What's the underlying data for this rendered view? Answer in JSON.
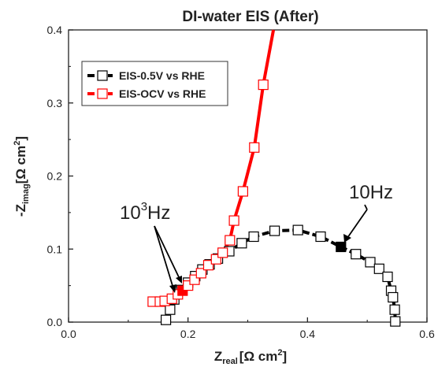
{
  "chart_data": {
    "type": "scatter",
    "title": "DI-water EIS (After)",
    "xlabel": {
      "main": "Z",
      "sub": "real",
      "unit": "[Ω  cm",
      "sup": "2",
      "close": "]"
    },
    "ylabel": {
      "main": "-Z",
      "sub": "imag",
      "unit": "[Ω cm",
      "sup": "2",
      "close": "]"
    },
    "xlim": [
      0.0,
      0.6
    ],
    "ylim": [
      0.0,
      0.4
    ],
    "xticks": [
      "0.0",
      "0.2",
      "0.4",
      "0.6"
    ],
    "yticks": [
      "0.0",
      "0.1",
      "0.2",
      "0.3",
      "0.4"
    ],
    "grid": false,
    "legend_position": "top-left",
    "series": [
      {
        "name": "EIS-0.5V vs RHE",
        "color": "#000000",
        "points": [
          [
            0.163,
            0.003
          ],
          [
            0.17,
            0.017
          ],
          [
            0.177,
            0.031
          ],
          [
            0.189,
            0.044
          ],
          [
            0.2,
            0.054
          ],
          [
            0.212,
            0.063
          ],
          [
            0.224,
            0.072
          ],
          [
            0.236,
            0.079
          ],
          [
            0.25,
            0.087
          ],
          [
            0.269,
            0.097
          ],
          [
            0.29,
            0.108
          ],
          [
            0.31,
            0.117
          ],
          [
            0.345,
            0.125
          ],
          [
            0.384,
            0.126
          ],
          [
            0.422,
            0.117
          ],
          [
            0.456,
            0.103
          ],
          [
            0.481,
            0.093
          ],
          [
            0.505,
            0.082
          ],
          [
            0.52,
            0.073
          ],
          [
            0.534,
            0.062
          ],
          [
            0.54,
            0.043
          ],
          [
            0.543,
            0.034
          ],
          [
            0.546,
            0.017
          ],
          [
            0.547,
            0.001
          ]
        ],
        "highlight": {
          "x": 0.456,
          "y": 0.103
        }
      },
      {
        "name": "EIS-OCV vs RHE",
        "color": "#ff0000",
        "points": [
          [
            0.141,
            0.028
          ],
          [
            0.153,
            0.028
          ],
          [
            0.161,
            0.029
          ],
          [
            0.173,
            0.032
          ],
          [
            0.183,
            0.038
          ],
          [
            0.191,
            0.043
          ],
          [
            0.2,
            0.05
          ],
          [
            0.211,
            0.058
          ],
          [
            0.222,
            0.067
          ],
          [
            0.234,
            0.078
          ],
          [
            0.247,
            0.086
          ],
          [
            0.258,
            0.095
          ],
          [
            0.27,
            0.112
          ],
          [
            0.277,
            0.139
          ],
          [
            0.292,
            0.179
          ],
          [
            0.311,
            0.239
          ],
          [
            0.326,
            0.325
          ]
        ],
        "highlight": {
          "x": 0.191,
          "y": 0.043
        },
        "curve_extension": [
          0.343,
          0.4
        ]
      }
    ],
    "annotations": [
      {
        "id": "10hz",
        "text": "10Hz"
      },
      {
        "id": "1e3hz",
        "text": "10",
        "sup": "3",
        "suffix": "Hz"
      }
    ]
  }
}
